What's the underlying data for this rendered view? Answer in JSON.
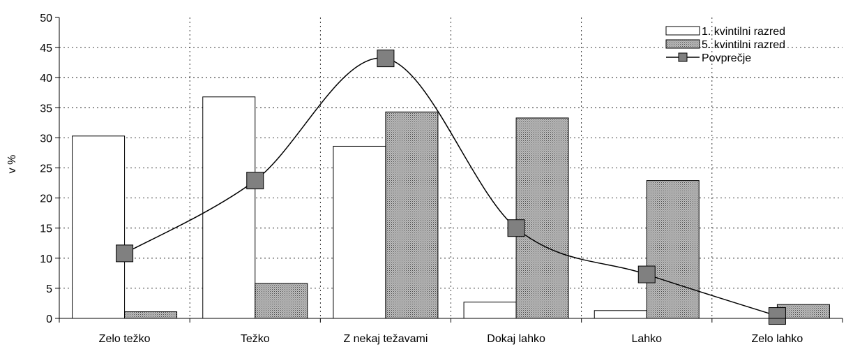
{
  "chart_data": {
    "type": "bar",
    "ylabel": "v %",
    "xlabel": "",
    "ylim": [
      0,
      50
    ],
    "ytick_step": 5,
    "grid": true,
    "legend_position": "top-right",
    "categories": [
      "Zelo težko",
      "Težko",
      "Z nekaj težavami",
      "Dokaj lahko",
      "Lahko",
      "Zelo lahko"
    ],
    "series": [
      {
        "name": "1. kvintilni razred",
        "kind": "bar",
        "style": "white",
        "values": [
          30.3,
          36.8,
          28.6,
          2.7,
          1.3,
          0
        ]
      },
      {
        "name": "5. kvintilni razred",
        "kind": "bar",
        "style": "gray-dotted",
        "values": [
          1.1,
          5.8,
          34.3,
          33.3,
          22.9,
          2.3
        ]
      },
      {
        "name": "Povprečje",
        "kind": "line",
        "marker": "square",
        "values": [
          10.8,
          22.9,
          43.2,
          15.0,
          7.3,
          0.4
        ]
      }
    ]
  }
}
